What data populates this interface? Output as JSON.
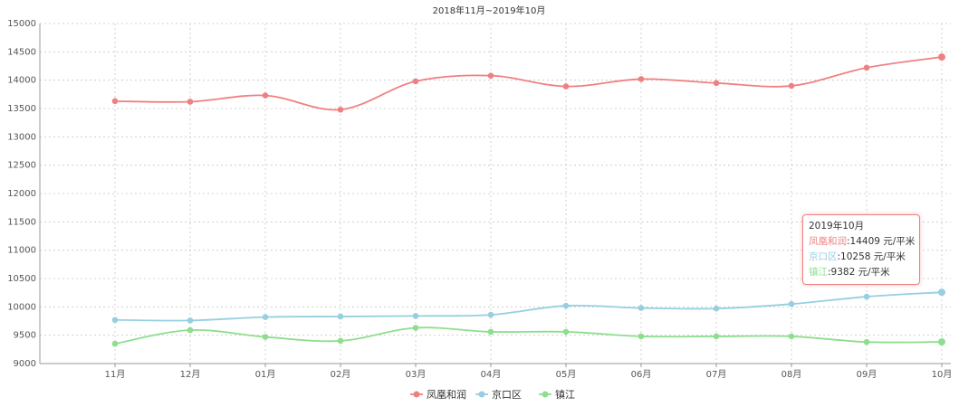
{
  "chart_data": {
    "type": "line",
    "title": "2018年11月~2019年10月",
    "categories": [
      "11月",
      "12月",
      "01月",
      "02月",
      "03月",
      "04月",
      "05月",
      "06月",
      "07月",
      "08月",
      "09月",
      "10月"
    ],
    "ylim": [
      9000,
      15000
    ],
    "yticks": [
      9000,
      9500,
      10000,
      10500,
      11000,
      11500,
      12000,
      12500,
      13000,
      13500,
      14000,
      14500,
      15000
    ],
    "grid": true,
    "legend_position": "bottom-center",
    "series": [
      {
        "name": "凤凰和润",
        "color": "#f08080",
        "values": [
          13630,
          13620,
          13730,
          13480,
          13980,
          14080,
          13890,
          14020,
          13950,
          13900,
          14220,
          14409
        ]
      },
      {
        "name": "京口区",
        "color": "#96cfe0",
        "values": [
          9770,
          9760,
          9820,
          9830,
          9840,
          9860,
          10020,
          9980,
          9970,
          10050,
          10180,
          10258
        ]
      },
      {
        "name": "镇江",
        "color": "#8ede8e",
        "values": [
          9350,
          9590,
          9470,
          9400,
          9630,
          9560,
          9560,
          9480,
          9480,
          9480,
          9380,
          9382
        ]
      }
    ]
  },
  "tooltip": {
    "title": "2019年10月",
    "rows": [
      {
        "name": "凤凰和润",
        "value": ":14409 元/平米"
      },
      {
        "name": "京口区",
        "value": ":10258 元/平米"
      },
      {
        "name": "镇江",
        "value": ":9382 元/平米"
      }
    ]
  }
}
